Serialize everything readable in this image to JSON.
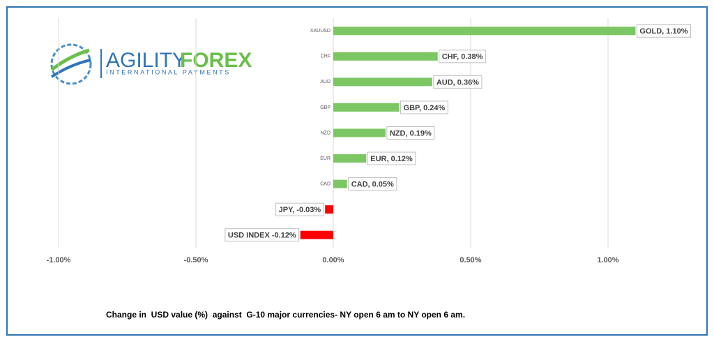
{
  "logo": {
    "name_part1": "AGILITY",
    "name_part2": "FOREX",
    "tagline": "INTERNATIONAL PAYMENTS"
  },
  "chart_data": {
    "type": "hbar",
    "caption": "Change in  USD value (%)  against  G-10 major currencies- NY open 6 am to NY open 6 am.",
    "categories": [
      "XAUUSD",
      "CHF",
      "AUD",
      "GBP",
      "NZD",
      "EUR",
      "CAD",
      null,
      null
    ],
    "values": [
      1.1,
      0.38,
      0.36,
      0.24,
      0.19,
      0.12,
      0.05,
      -0.03,
      -0.12
    ],
    "value_labels": [
      "GOLD, 1.10%",
      "CHF, 0.38%",
      "AUD, 0.36%",
      "GBP, 0.24%",
      "NZD, 0.19%",
      "EUR, 0.12%",
      "CAD, 0.05%",
      "JPY, -0.03%",
      "USD INDEX -0.12%"
    ],
    "positive_color": "#7cc764",
    "negative_color": "#ff0000",
    "xlim": [
      -1,
      1.25
    ],
    "xticks": [
      {
        "value": -1,
        "label": "-1.00%"
      },
      {
        "value": -0.5,
        "label": "-0.50%"
      },
      {
        "value": 0,
        "label": "0.00%"
      },
      {
        "value": 0.5,
        "label": "0.50%"
      },
      {
        "value": 1,
        "label": "1.00%"
      }
    ],
    "grid": true
  }
}
